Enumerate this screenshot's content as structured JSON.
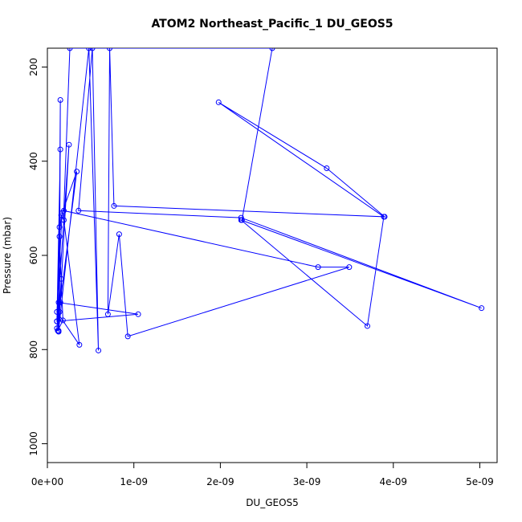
{
  "chart_data": {
    "type": "line",
    "title": "ATOM2 Northeast_Pacific_1 DU_GEOS5",
    "xlabel": "DU_GEOS5",
    "ylabel": "Pressure (mbar)",
    "xlim": [
      0,
      5.2e-09
    ],
    "ylim": [
      1040,
      160
    ],
    "y_reversed": true,
    "x_ticks": [
      0,
      1e-09,
      2e-09,
      3e-09,
      4e-09,
      5e-09
    ],
    "x_tick_labels": [
      "0e+00",
      "1e-09",
      "2e-09",
      "3e-09",
      "4e-09",
      "5e-09"
    ],
    "y_ticks": [
      200,
      400,
      600,
      800,
      1000
    ],
    "y_tick_labels": [
      "200",
      "400",
      "600",
      "800",
      "1000"
    ],
    "grid": false,
    "legend": "none",
    "marker": "open-circle",
    "colors": {
      "series": "#0000ff",
      "axis": "#000000",
      "background": "#ffffff"
    },
    "series": [
      {
        "points": [
          [
            1.5e-10,
            375
          ],
          [
            1.1e-10,
            740
          ],
          [
            1.4e-10,
            540
          ],
          [
            1.3e-10,
            762
          ],
          [
            1.5e-10,
            270
          ],
          [
            1.4e-10,
            720
          ],
          [
            1.6e-10,
            650
          ],
          [
            1.5e-10,
            700
          ],
          [
            1.2e-10,
            760
          ],
          [
            1.8e-10,
            738
          ],
          [
            1.4e-10,
            560
          ],
          [
            1.6e-10,
            515
          ],
          [
            1.9e-10,
            525
          ],
          [
            3.7e-10,
            790
          ],
          [
            1.1e-10,
            720
          ],
          [
            1.7e-10,
            510
          ],
          [
            3.4e-10,
            422
          ],
          [
            1.1e-10,
            755
          ],
          [
            1.3e-10,
            700
          ],
          [
            1.05e-09,
            725
          ],
          [
            1.1e-10,
            740
          ],
          [
            2.5e-10,
            365
          ],
          [
            1.3e-10,
            760
          ],
          [
            4.8e-10,
            160
          ],
          [
            5.9e-10,
            802
          ],
          [
            5.2e-10,
            160
          ],
          [
            3.6e-10,
            505
          ],
          [
            2.24e-09,
            520
          ],
          [
            5.02e-09,
            712
          ],
          [
            2.24e-09,
            525
          ],
          [
            3.7e-09,
            750
          ],
          [
            3.89e-09,
            518
          ],
          [
            1.98e-09,
            275
          ],
          [
            3.23e-09,
            415
          ],
          [
            3.9e-09,
            518
          ],
          [
            7.7e-10,
            495
          ],
          [
            7.2e-10,
            160
          ],
          [
            7e-10,
            725
          ],
          [
            8.3e-10,
            555
          ],
          [
            9.3e-10,
            772
          ],
          [
            3.49e-09,
            625
          ],
          [
            3.13e-09,
            625
          ],
          [
            1.9e-10,
            505
          ],
          [
            2.6e-10,
            160
          ],
          [
            2.6e-09,
            160
          ],
          [
            2.25e-09,
            525
          ]
        ]
      }
    ]
  }
}
